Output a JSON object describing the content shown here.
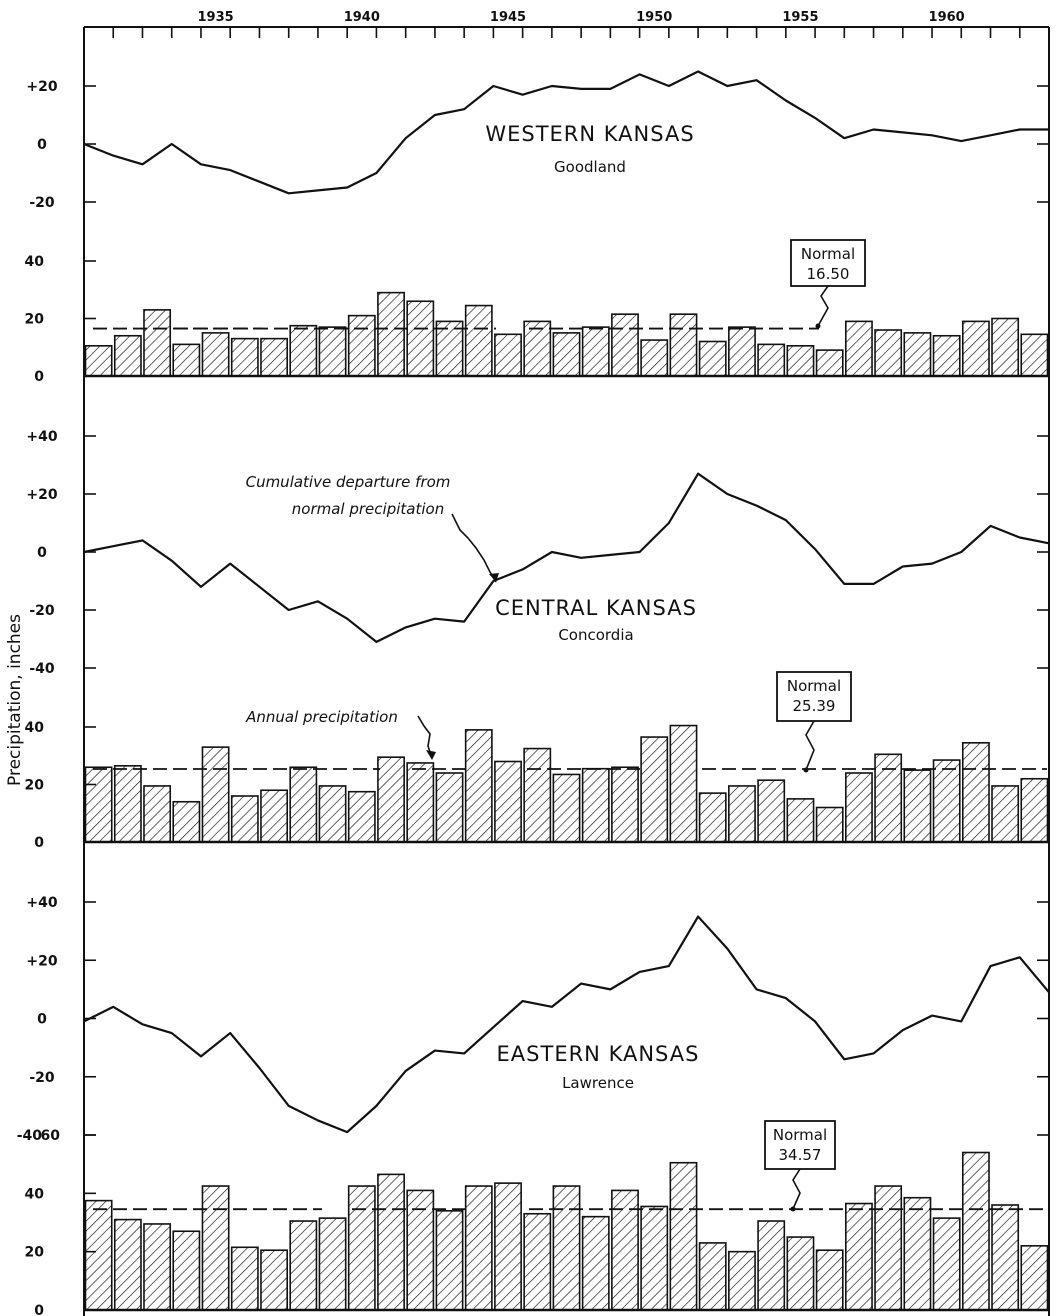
{
  "chart_data": {
    "type": "bar",
    "ylabel": "Precipitation, inches",
    "x_tick_labels": [
      "1935",
      "1940",
      "1945",
      "1950",
      "1955",
      "1960"
    ],
    "years": [
      1931,
      1932,
      1933,
      1934,
      1935,
      1936,
      1937,
      1938,
      1939,
      1940,
      1941,
      1942,
      1943,
      1944,
      1945,
      1946,
      1947,
      1948,
      1949,
      1950,
      1951,
      1952,
      1953,
      1954,
      1955,
      1956,
      1957,
      1958,
      1959,
      1960,
      1961,
      1962,
      1963
    ],
    "annotations": {
      "cumulative": [
        "Cumulative departure from",
        "normal precipitation"
      ],
      "annual": "Annual precipitation"
    },
    "normal_word": "Normal",
    "panels": [
      {
        "region": "WESTERN KANSAS",
        "station": "Goodland",
        "normal": "16.50",
        "normal_value": 16.5,
        "departure_ticks": [
          "+20",
          "0",
          "-20"
        ],
        "departure_ylim": [
          -20,
          20
        ],
        "departure_x": [
          1930.5,
          1931.5,
          1932.5,
          1933.5,
          1934.5,
          1935.5,
          1936.5,
          1937.5,
          1938.5,
          1939.5,
          1940.5,
          1941.5,
          1942.5,
          1943.5,
          1944.5,
          1945.5,
          1946.5,
          1947.5,
          1948.5,
          1949.5,
          1950.5,
          1951.5,
          1952.5,
          1953.5,
          1954.5,
          1955.5,
          1956.5,
          1957.5,
          1958.5,
          1959.5,
          1960.5,
          1961.5,
          1962.5,
          1963.5
        ],
        "cumulative_departure": [
          0,
          -4,
          -7,
          0,
          -7,
          -9,
          -13,
          -17,
          -16,
          -15,
          -10,
          2,
          10,
          12,
          20,
          17,
          20,
          19,
          19,
          24,
          20,
          25,
          20,
          22,
          15,
          9,
          2,
          5,
          4,
          3,
          1,
          3,
          5,
          5
        ],
        "annual_ticks": [
          "40",
          "20",
          "0"
        ],
        "annual_ylim": [
          0,
          40
        ],
        "annual": [
          10.5,
          14,
          23,
          11,
          15,
          13,
          13,
          17.5,
          17,
          21,
          29,
          26,
          19,
          24.5,
          14.5,
          19,
          15,
          17,
          21.5,
          12.5,
          21.5,
          12,
          17,
          11,
          10.5,
          9,
          19,
          16,
          15,
          14,
          19,
          20,
          14.5
        ]
      },
      {
        "region": "CENTRAL KANSAS",
        "station": "Concordia",
        "normal": "25.39",
        "normal_value": 25.39,
        "departure_ticks": [
          "+40",
          "+20",
          "0",
          "-20",
          "-40"
        ],
        "departure_ylim": [
          -40,
          40
        ],
        "departure_x": [
          1930.5,
          1931.5,
          1932.5,
          1933.5,
          1934.5,
          1935.5,
          1936.5,
          1937.5,
          1938.5,
          1939.5,
          1940.5,
          1941.5,
          1942.5,
          1943.5,
          1944.5,
          1945.5,
          1946.5,
          1947.5,
          1948.5,
          1949.5,
          1950.5,
          1951.5,
          1952.5,
          1953.5,
          1954.5,
          1955.5,
          1956.5,
          1957.5,
          1958.5,
          1959.5,
          1960.5,
          1961.5,
          1962.5,
          1963.5
        ],
        "cumulative_departure": [
          0,
          2,
          4,
          -3,
          -12,
          -4,
          -12,
          -20,
          -17,
          -23,
          -31,
          -26,
          -23,
          -24,
          -10,
          -6,
          0,
          -2,
          -1,
          0,
          10,
          27,
          20,
          16,
          11,
          1,
          -11,
          -11,
          -5,
          -4,
          0,
          9,
          5,
          3
        ],
        "annual_ticks": [
          "40",
          "20",
          "0"
        ],
        "annual_ylim": [
          0,
          40
        ],
        "annual": [
          26,
          26.5,
          19.5,
          14,
          33,
          16,
          18,
          26,
          19.5,
          17.5,
          29.5,
          27.5,
          24,
          39,
          28,
          32.5,
          23.5,
          25.5,
          26,
          36.5,
          40.5,
          17,
          19.5,
          21.5,
          15,
          12,
          24,
          30.5,
          25,
          28.5,
          34.5,
          19.5,
          22
        ]
      },
      {
        "region": "EASTERN KANSAS",
        "station": "Lawrence",
        "normal": "34.57",
        "normal_value": 34.57,
        "departure_ticks": [
          "+40",
          "+20",
          "0",
          "-20",
          "-40"
        ],
        "departure_ylim": [
          -40,
          40
        ],
        "departure_x": [
          1930.5,
          1931.5,
          1932.5,
          1933.5,
          1934.5,
          1935.5,
          1936.5,
          1937.5,
          1938.5,
          1939.5,
          1940.5,
          1941.5,
          1942.5,
          1943.5,
          1944.5,
          1945.5,
          1946.5,
          1947.5,
          1948.5,
          1949.5,
          1950.5,
          1951.5,
          1952.5,
          1953.5,
          1954.5,
          1955.5,
          1956.5,
          1957.5,
          1958.5,
          1959.5,
          1960.5,
          1961.5,
          1962.5,
          1963.5
        ],
        "cumulative_departure": [
          -1,
          4,
          -2,
          -5,
          -13,
          -5,
          -17,
          -30,
          -35,
          -39,
          -30,
          -18,
          -11,
          -12,
          -3,
          6,
          4,
          12,
          10,
          16,
          18,
          35,
          24,
          10,
          7,
          -1,
          -14,
          -12,
          -4,
          1,
          -1,
          18,
          21,
          9
        ],
        "annual_ticks": [
          "60",
          "40",
          "20",
          "0"
        ],
        "annual_ylim": [
          0,
          60
        ],
        "annual": [
          37.5,
          31,
          29.5,
          27,
          42.5,
          21.5,
          20.5,
          30.5,
          31.5,
          42.5,
          46.5,
          41,
          34,
          42.5,
          43.5,
          33,
          42.5,
          32,
          41,
          35.5,
          50.5,
          23,
          20,
          30.5,
          25,
          20.5,
          36.5,
          42.5,
          38.5,
          31.5,
          54,
          36,
          22
        ]
      }
    ]
  }
}
